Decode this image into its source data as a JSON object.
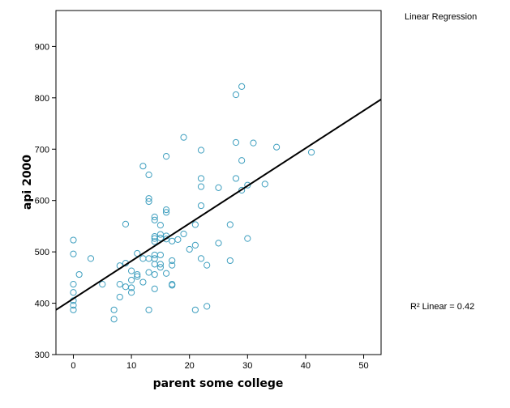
{
  "chart_data": {
    "type": "scatter",
    "title": "",
    "xlabel": "parent some college",
    "ylabel": "api 2000",
    "xlim": [
      -3,
      53
    ],
    "ylim": [
      300,
      970
    ],
    "xticks": [
      0,
      10,
      20,
      30,
      40,
      50
    ],
    "yticks": [
      300,
      400,
      500,
      600,
      700,
      800,
      900
    ],
    "grid": false,
    "legend": {
      "placement": "right",
      "label": "Linear Regression"
    },
    "r2_label": "R² Linear = 0.42",
    "colors": {
      "marker": "#3f9fbf",
      "line": "#000000"
    },
    "fit_line": {
      "x": [
        -3,
        53
      ],
      "y": [
        387,
        797
      ]
    },
    "points": [
      {
        "x": 0,
        "y": 523
      },
      {
        "x": 0,
        "y": 496
      },
      {
        "x": 0,
        "y": 437
      },
      {
        "x": 0,
        "y": 421
      },
      {
        "x": 0,
        "y": 405
      },
      {
        "x": 0,
        "y": 396
      },
      {
        "x": 0,
        "y": 387
      },
      {
        "x": 1,
        "y": 456
      },
      {
        "x": 3,
        "y": 487
      },
      {
        "x": 5,
        "y": 437
      },
      {
        "x": 7,
        "y": 387
      },
      {
        "x": 7,
        "y": 369
      },
      {
        "x": 8,
        "y": 473
      },
      {
        "x": 8,
        "y": 437
      },
      {
        "x": 8,
        "y": 412
      },
      {
        "x": 9,
        "y": 554
      },
      {
        "x": 9,
        "y": 478
      },
      {
        "x": 9,
        "y": 432
      },
      {
        "x": 10,
        "y": 463
      },
      {
        "x": 10,
        "y": 445
      },
      {
        "x": 10,
        "y": 430
      },
      {
        "x": 10,
        "y": 421
      },
      {
        "x": 11,
        "y": 497
      },
      {
        "x": 11,
        "y": 456
      },
      {
        "x": 11,
        "y": 452
      },
      {
        "x": 12,
        "y": 667
      },
      {
        "x": 12,
        "y": 487
      },
      {
        "x": 12,
        "y": 441
      },
      {
        "x": 13,
        "y": 650
      },
      {
        "x": 13,
        "y": 604
      },
      {
        "x": 13,
        "y": 598
      },
      {
        "x": 13,
        "y": 487
      },
      {
        "x": 13,
        "y": 387
      },
      {
        "x": 13,
        "y": 460
      },
      {
        "x": 14,
        "y": 568
      },
      {
        "x": 14,
        "y": 562
      },
      {
        "x": 14,
        "y": 530
      },
      {
        "x": 14,
        "y": 526
      },
      {
        "x": 14,
        "y": 520
      },
      {
        "x": 14,
        "y": 494
      },
      {
        "x": 14,
        "y": 487
      },
      {
        "x": 14,
        "y": 476
      },
      {
        "x": 14,
        "y": 456
      },
      {
        "x": 14,
        "y": 428
      },
      {
        "x": 15,
        "y": 552
      },
      {
        "x": 15,
        "y": 534
      },
      {
        "x": 15,
        "y": 527
      },
      {
        "x": 15,
        "y": 494
      },
      {
        "x": 15,
        "y": 476
      },
      {
        "x": 15,
        "y": 470
      },
      {
        "x": 16,
        "y": 686
      },
      {
        "x": 16,
        "y": 582
      },
      {
        "x": 16,
        "y": 577
      },
      {
        "x": 16,
        "y": 531
      },
      {
        "x": 16,
        "y": 525
      },
      {
        "x": 16,
        "y": 458
      },
      {
        "x": 17,
        "y": 521
      },
      {
        "x": 17,
        "y": 483
      },
      {
        "x": 17,
        "y": 474
      },
      {
        "x": 17,
        "y": 437
      },
      {
        "x": 17,
        "y": 435
      },
      {
        "x": 18,
        "y": 524
      },
      {
        "x": 19,
        "y": 723
      },
      {
        "x": 19,
        "y": 535
      },
      {
        "x": 20,
        "y": 505
      },
      {
        "x": 21,
        "y": 553
      },
      {
        "x": 21,
        "y": 513
      },
      {
        "x": 21,
        "y": 387
      },
      {
        "x": 22,
        "y": 698
      },
      {
        "x": 22,
        "y": 643
      },
      {
        "x": 22,
        "y": 627
      },
      {
        "x": 22,
        "y": 590
      },
      {
        "x": 22,
        "y": 487
      },
      {
        "x": 23,
        "y": 474
      },
      {
        "x": 23,
        "y": 394
      },
      {
        "x": 25,
        "y": 625
      },
      {
        "x": 25,
        "y": 517
      },
      {
        "x": 27,
        "y": 553
      },
      {
        "x": 27,
        "y": 483
      },
      {
        "x": 28,
        "y": 806
      },
      {
        "x": 28,
        "y": 713
      },
      {
        "x": 28,
        "y": 643
      },
      {
        "x": 29,
        "y": 822
      },
      {
        "x": 29,
        "y": 678
      },
      {
        "x": 29,
        "y": 620
      },
      {
        "x": 30,
        "y": 630
      },
      {
        "x": 30,
        "y": 526
      },
      {
        "x": 31,
        "y": 712
      },
      {
        "x": 33,
        "y": 632
      },
      {
        "x": 35,
        "y": 704
      },
      {
        "x": 41,
        "y": 694
      }
    ]
  }
}
